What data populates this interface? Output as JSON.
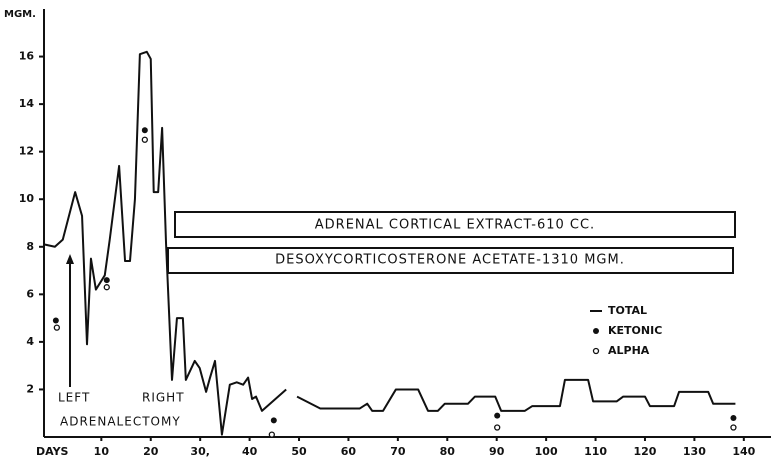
{
  "chart_data": {
    "type": "line",
    "y_label": "MGM.",
    "x_label": "DAYS",
    "xlim": [
      -1.6,
      145.5
    ],
    "ylim": [
      0,
      18
    ],
    "xticks": [
      10,
      20,
      {
        "value": 30,
        "label": "30,"
      },
      40,
      50,
      60,
      70,
      80,
      90,
      100,
      110,
      120,
      130,
      140
    ],
    "yticks": [
      2,
      4,
      6,
      8,
      10,
      12,
      14,
      16
    ],
    "color": "#111111",
    "series": [
      {
        "name": "TOTAL",
        "mark": "line",
        "x": [
          -1.6,
          0.6,
          2.2,
          4.7,
          6.1,
          7.1,
          7.9,
          8.9,
          10.7,
          11.7,
          13.6,
          14.8,
          15.8,
          16.8,
          17.8,
          19.2,
          20.0,
          20.6,
          21.5,
          22.3,
          23.1,
          24.3,
          25.3,
          26.5,
          27.1,
          28.9,
          29.9,
          31.2,
          32.0,
          33.0,
          34.4,
          36.0,
          37.4,
          38.7,
          39.7,
          40.5,
          41.3,
          42.5,
          47.4,
          48.5,
          49.6,
          54.3,
          62.3,
          63.8,
          64.8,
          67.0,
          69.6,
          74.1,
          76.1,
          78.1,
          79.5,
          84.2,
          85.6,
          89.7,
          90.9,
          95.7,
          97.2,
          102.8,
          103.8,
          108.5,
          109.5,
          114.3,
          115.6,
          120.0,
          121.0,
          125.9,
          126.9,
          132.8,
          133.8,
          138.3
        ],
        "values": [
          8.1,
          8.0,
          8.3,
          10.3,
          9.3,
          3.9,
          7.5,
          6.2,
          6.8,
          8.3,
          11.4,
          7.4,
          7.4,
          10.0,
          16.1,
          16.2,
          15.9,
          10.3,
          10.3,
          13.0,
          8.1,
          2.4,
          5.0,
          5.0,
          2.4,
          3.2,
          2.9,
          1.9,
          2.5,
          3.2,
          0.1,
          2.2,
          2.3,
          2.2,
          2.5,
          1.6,
          1.7,
          1.1,
          2.0,
          null,
          1.7,
          1.2,
          1.2,
          1.4,
          1.1,
          1.1,
          2.0,
          2.0,
          1.1,
          1.1,
          1.4,
          1.4,
          1.7,
          1.7,
          1.1,
          1.1,
          1.3,
          1.3,
          2.4,
          2.4,
          1.5,
          1.5,
          1.7,
          1.7,
          1.3,
          1.3,
          1.9,
          1.9,
          1.4,
          1.4
        ]
      },
      {
        "name": "KETONIC",
        "mark": "dot",
        "x": [
          0.8,
          11.1,
          18.8,
          44.9,
          90.1,
          137.9
        ],
        "values": [
          4.9,
          6.6,
          12.9,
          0.7,
          0.9,
          0.8
        ]
      },
      {
        "name": "ALPHA",
        "mark": "ring",
        "x": [
          1.0,
          11.1,
          18.8,
          44.5,
          90.1,
          137.9
        ],
        "values": [
          4.6,
          6.3,
          12.5,
          0.1,
          0.4,
          0.4
        ]
      }
    ],
    "annotations": [
      "ADRENAL CORTICAL EXTRACT-610 CC.",
      "DESOXYCORTICOSTERONE ACETATE-1310 MGM.",
      "LEFT",
      "RIGHT",
      "ADRENALECTOMY"
    ]
  }
}
